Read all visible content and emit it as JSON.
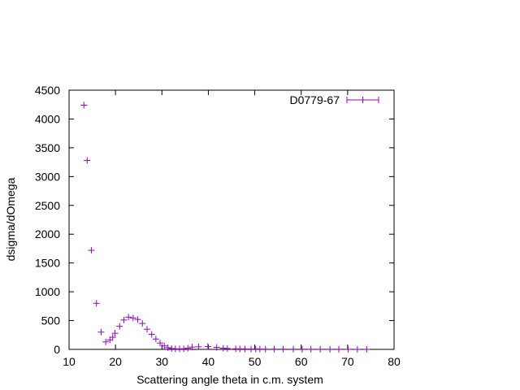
{
  "chart_data": {
    "type": "scatter",
    "title": "",
    "xlabel": "Scattering angle theta in c.m. system",
    "ylabel": "dsigma/dOmega",
    "xlim": [
      10,
      80
    ],
    "ylim": [
      0,
      4500
    ],
    "xticks": [
      10,
      20,
      30,
      40,
      50,
      60,
      70,
      80
    ],
    "yticks": [
      0,
      500,
      1000,
      1500,
      2000,
      2500,
      3000,
      3500,
      4000,
      4500
    ],
    "grid": false,
    "legend_position": "top-right",
    "marker": "plus",
    "color": "#9400d3",
    "series": [
      {
        "name": "D0779-67",
        "x": [
          13.2,
          13.9,
          14.8,
          15.9,
          16.9,
          17.9,
          18.8,
          19.4,
          19.9,
          20.9,
          21.8,
          22.8,
          23.8,
          24.8,
          25.8,
          26.8,
          27.8,
          28.7,
          29.6,
          30.5,
          31.3,
          32.1,
          32.9,
          33.8,
          34.7,
          35.6,
          36.5,
          37.9,
          39.9,
          41.8,
          43.2,
          44.1,
          45.9,
          46.8,
          47.9,
          49.2,
          50.2,
          51.1,
          52.3,
          54.2,
          56.1,
          58.3,
          60.2,
          62.1,
          64.1,
          66.2,
          68.1,
          70.1,
          72.1,
          74.1
        ],
        "y": [
          4240,
          3280,
          1720,
          800,
          300,
          130,
          165,
          210,
          280,
          400,
          510,
          560,
          545,
          520,
          450,
          350,
          260,
          180,
          110,
          60,
          30,
          15,
          10,
          8,
          10,
          20,
          40,
          45,
          50,
          35,
          20,
          15,
          10,
          8,
          7,
          6,
          5,
          5,
          4,
          4,
          4,
          3,
          3,
          2,
          2,
          2,
          2,
          1,
          1,
          1
        ]
      }
    ]
  }
}
